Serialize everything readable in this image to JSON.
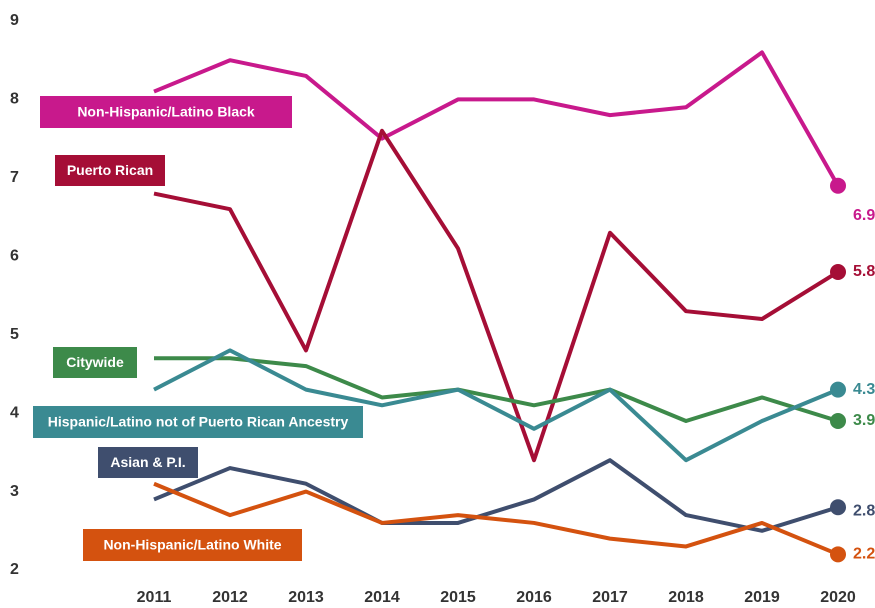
{
  "chart_data": {
    "type": "line",
    "categories": [
      "2011",
      "2012",
      "2013",
      "2014",
      "2015",
      "2016",
      "2017",
      "2018",
      "2019",
      "2020"
    ],
    "series": [
      {
        "name": "Non-Hispanic/Latino Black",
        "color": "#c8198c",
        "values": [
          8.1,
          8.5,
          8.3,
          7.5,
          8.0,
          8.0,
          7.8,
          7.9,
          8.6,
          6.9
        ]
      },
      {
        "name": "Puerto Rican",
        "color": "#a50e36",
        "values": [
          6.8,
          6.6,
          4.8,
          7.6,
          6.1,
          3.4,
          6.3,
          5.3,
          5.2,
          5.8
        ]
      },
      {
        "name": "Citywide",
        "color": "#3d8a4a",
        "values": [
          4.7,
          4.7,
          4.6,
          4.2,
          4.3,
          4.1,
          4.3,
          3.9,
          4.2,
          3.9
        ]
      },
      {
        "name": "Hispanic/Latino not of Puerto Rican Ancestry",
        "color": "#3a8a92",
        "values": [
          4.3,
          4.8,
          4.3,
          4.1,
          4.3,
          3.8,
          4.3,
          3.4,
          3.9,
          4.3
        ]
      },
      {
        "name": "Asian & P.I.",
        "color": "#3f4e6e",
        "values": [
          2.9,
          3.3,
          3.1,
          2.6,
          2.6,
          2.9,
          3.4,
          2.7,
          2.5,
          2.8
        ]
      },
      {
        "name": "Non-Hispanic/Latino White",
        "color": "#d4520f",
        "values": [
          3.1,
          2.7,
          3.0,
          2.6,
          2.7,
          2.6,
          2.4,
          2.3,
          2.6,
          2.2
        ]
      }
    ],
    "ylim": [
      2,
      9
    ],
    "yticks": [
      2,
      3,
      4,
      5,
      6,
      7,
      8,
      9
    ]
  }
}
